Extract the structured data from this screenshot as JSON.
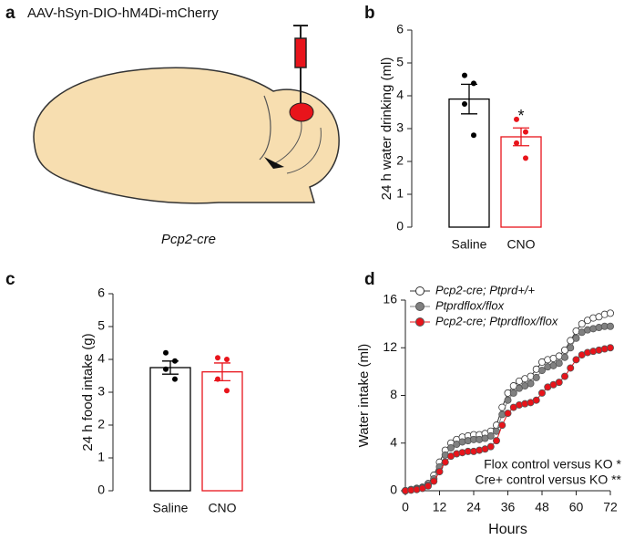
{
  "panel_a": {
    "label": "a",
    "title": "AAV-hSyn-DIO-hM4Di-mCherry",
    "caption": "Pcp2-cre"
  },
  "chart_data": [
    {
      "type": "bar",
      "panel_label": "b",
      "ylabel": "24 h water drinking (ml)",
      "categories": [
        "Saline",
        "CNO"
      ],
      "values": [
        3.9,
        2.75
      ],
      "errors": [
        0.45,
        0.27
      ],
      "colors": [
        "#000000",
        "#e8141b"
      ],
      "points": [
        [
          4.62,
          4.38,
          3.75,
          2.8
        ],
        [
          3.28,
          2.9,
          2.56,
          2.1
        ]
      ],
      "significance": [
        null,
        "*"
      ],
      "ylim": [
        0,
        6
      ],
      "yticks": [
        0,
        1,
        2,
        3,
        4,
        5,
        6
      ]
    },
    {
      "type": "bar",
      "panel_label": "c",
      "ylabel": "24 h food intake (g)",
      "categories": [
        "Saline",
        "CNO"
      ],
      "values": [
        3.75,
        3.62
      ],
      "errors": [
        0.2,
        0.27
      ],
      "colors": [
        "#000000",
        "#e8141b"
      ],
      "points": [
        [
          4.2,
          3.95,
          3.7,
          3.4
        ],
        [
          4.05,
          4.0,
          3.4,
          3.05
        ]
      ],
      "significance": [
        null,
        null
      ],
      "ylim": [
        0,
        6
      ],
      "yticks": [
        0,
        1,
        2,
        3,
        4,
        5,
        6
      ]
    },
    {
      "type": "line",
      "panel_label": "d",
      "xlabel": "Hours",
      "ylabel": "Water intake (ml)",
      "x": [
        0,
        2,
        4,
        6,
        8,
        10,
        12,
        14,
        16,
        18,
        20,
        22,
        24,
        26,
        28,
        30,
        32,
        34,
        36,
        38,
        40,
        42,
        44,
        46,
        48,
        50,
        52,
        54,
        56,
        58,
        60,
        62,
        64,
        66,
        68,
        70,
        72
      ],
      "series": [
        {
          "name": "Pcp2-cre; Ptprd+/+",
          "color": "#ffffff",
          "values": [
            0,
            0.1,
            0.2,
            0.3,
            0.6,
            1.3,
            2.4,
            3.4,
            4.0,
            4.3,
            4.5,
            4.6,
            4.7,
            4.7,
            4.8,
            5.0,
            5.5,
            7.0,
            8.2,
            8.8,
            9.2,
            9.4,
            9.6,
            10.2,
            10.8,
            11.0,
            11.1,
            11.3,
            11.8,
            12.6,
            13.4,
            14.0,
            14.3,
            14.5,
            14.6,
            14.8,
            14.9
          ]
        },
        {
          "name": "Ptprdflox/flox",
          "color": "#808080",
          "values": [
            0,
            0.1,
            0.15,
            0.25,
            0.5,
            1.0,
            2.0,
            3.0,
            3.6,
            3.9,
            4.1,
            4.2,
            4.3,
            4.3,
            4.4,
            4.6,
            5.0,
            6.4,
            7.6,
            8.2,
            8.6,
            8.8,
            9.0,
            9.5,
            10.1,
            10.4,
            10.5,
            10.7,
            11.2,
            12.0,
            12.8,
            13.3,
            13.5,
            13.6,
            13.7,
            13.8,
            13.8
          ]
        },
        {
          "name": "Pcp2-cre; Ptprdflox/flox",
          "color": "#e8141b",
          "values": [
            0,
            0.05,
            0.1,
            0.2,
            0.4,
            0.8,
            1.6,
            2.4,
            2.9,
            3.1,
            3.2,
            3.3,
            3.3,
            3.4,
            3.5,
            3.7,
            4.2,
            5.5,
            6.5,
            7.0,
            7.2,
            7.3,
            7.4,
            7.6,
            8.2,
            8.7,
            8.9,
            9.1,
            9.6,
            10.3,
            11.0,
            11.4,
            11.6,
            11.7,
            11.8,
            11.9,
            12.0
          ]
        }
      ],
      "annotations": [
        "Flox control versus KO *",
        "Cre+ control versus KO **"
      ],
      "legend": "upper left",
      "xlim": [
        0,
        72
      ],
      "xticks": [
        0,
        12,
        24,
        36,
        48,
        60,
        72
      ],
      "ylim": [
        0,
        16
      ],
      "yticks": [
        0,
        4,
        8,
        12,
        16
      ]
    }
  ]
}
